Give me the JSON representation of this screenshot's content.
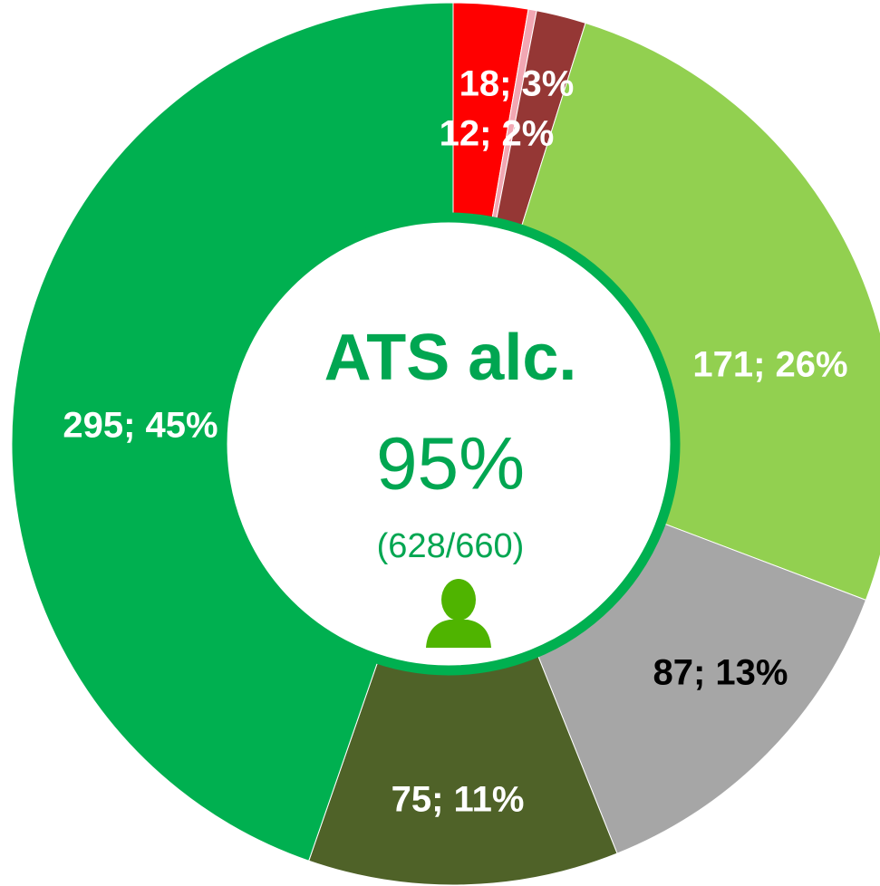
{
  "chart_data": {
    "type": "donut",
    "center_title": "ATS alc.",
    "center_value": "95%",
    "center_detail": "(628/660)",
    "categories": [
      null,
      null,
      null,
      null,
      null,
      null,
      null
    ],
    "values": [
      18,
      2,
      12,
      171,
      87,
      75,
      295
    ],
    "value_labels": [
      "18; 3%",
      null,
      "12; 2%",
      "171; 26%",
      "87; 13%",
      "75; 11%",
      "295; 45%"
    ],
    "colors": [
      "#ff0000",
      "#f2a7b3",
      "#953735",
      "#92d050",
      "#a6a6a6",
      "#4f6228",
      "#00b050"
    ],
    "label_colors": [
      "#ffffff",
      "#ffffff",
      "#ffffff",
      "#ffffff",
      "#000000",
      "#ffffff",
      "#ffffff"
    ],
    "ring_color": "#00b050"
  }
}
